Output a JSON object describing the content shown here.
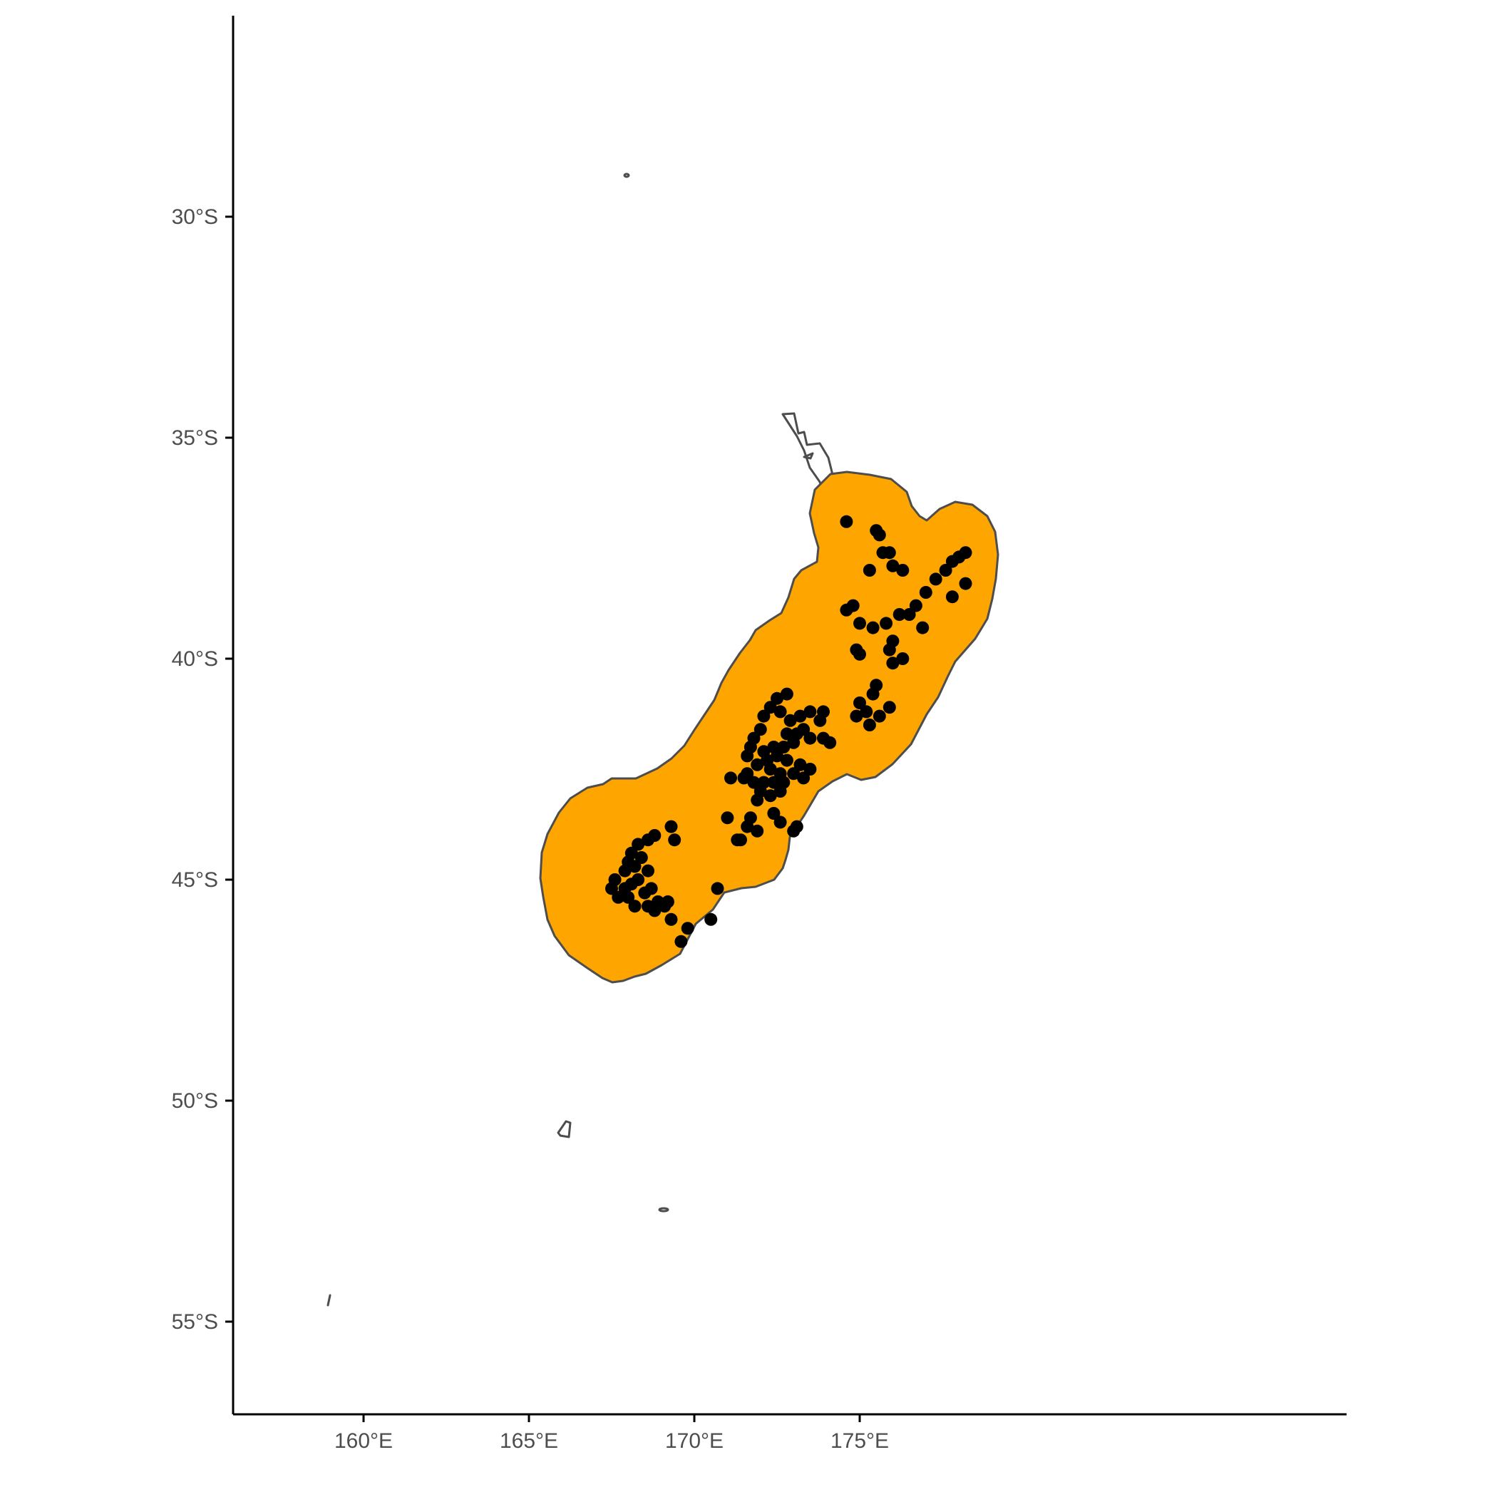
{
  "map": {
    "buffer_fill": "#FFA500",
    "outline_color": "#4d4d4d",
    "point_color": "#000000",
    "x_axis": {
      "ticks": [
        {
          "lon": 160,
          "label": "160°E"
        },
        {
          "lon": 165,
          "label": "165°E"
        },
        {
          "lon": 170,
          "label": "170°E"
        },
        {
          "lon": 175,
          "label": "175°E"
        }
      ]
    },
    "y_axis": {
      "ticks": [
        {
          "lat": -30,
          "label": "30°S"
        },
        {
          "lat": -35,
          "label": "35°S"
        },
        {
          "lat": -40,
          "label": "40°S"
        },
        {
          "lat": -45,
          "label": "45°S"
        },
        {
          "lat": -50,
          "label": "50°S"
        },
        {
          "lat": -55,
          "label": "55°S"
        }
      ]
    },
    "occurrences": [
      [
        174.6,
        -36.9
      ],
      [
        175.5,
        -37.1
      ],
      [
        175.6,
        -37.2
      ],
      [
        175.7,
        -37.6
      ],
      [
        175.9,
        -37.6
      ],
      [
        175.3,
        -38.0
      ],
      [
        176.0,
        -37.9
      ],
      [
        176.3,
        -38.0
      ],
      [
        177.8,
        -37.8
      ],
      [
        178.0,
        -37.7
      ],
      [
        178.2,
        -37.6
      ],
      [
        177.6,
        -38.0
      ],
      [
        177.3,
        -38.2
      ],
      [
        177.0,
        -38.5
      ],
      [
        176.7,
        -38.8
      ],
      [
        176.5,
        -39.0
      ],
      [
        178.2,
        -38.3
      ],
      [
        177.8,
        -38.6
      ],
      [
        176.9,
        -39.3
      ],
      [
        176.2,
        -39.0
      ],
      [
        175.8,
        -39.2
      ],
      [
        175.4,
        -39.3
      ],
      [
        175.0,
        -39.2
      ],
      [
        174.6,
        -38.9
      ],
      [
        174.8,
        -38.8
      ],
      [
        174.9,
        -39.8
      ],
      [
        175.0,
        -39.9
      ],
      [
        176.0,
        -39.6
      ],
      [
        176.0,
        -40.1
      ],
      [
        176.3,
        -40.0
      ],
      [
        175.9,
        -39.8
      ],
      [
        175.5,
        -40.6
      ],
      [
        175.4,
        -40.8
      ],
      [
        175.0,
        -41.0
      ],
      [
        175.2,
        -41.2
      ],
      [
        174.9,
        -41.3
      ],
      [
        175.3,
        -41.5
      ],
      [
        175.6,
        -41.3
      ],
      [
        175.9,
        -41.1
      ],
      [
        172.8,
        -40.8
      ],
      [
        172.5,
        -40.9
      ],
      [
        172.3,
        -41.1
      ],
      [
        172.1,
        -41.3
      ],
      [
        172.6,
        -41.2
      ],
      [
        172.9,
        -41.4
      ],
      [
        173.2,
        -41.3
      ],
      [
        173.5,
        -41.2
      ],
      [
        173.9,
        -41.2
      ],
      [
        173.8,
        -41.4
      ],
      [
        173.3,
        -41.6
      ],
      [
        173.1,
        -41.7
      ],
      [
        172.8,
        -41.7
      ],
      [
        172.0,
        -41.6
      ],
      [
        171.8,
        -41.8
      ],
      [
        171.7,
        -42.0
      ],
      [
        172.4,
        -42.0
      ],
      [
        172.7,
        -42.0
      ],
      [
        173.0,
        -41.9
      ],
      [
        173.5,
        -41.8
      ],
      [
        173.9,
        -41.8
      ],
      [
        174.1,
        -41.9
      ],
      [
        172.1,
        -42.1
      ],
      [
        171.6,
        -42.2
      ],
      [
        171.9,
        -42.4
      ],
      [
        172.2,
        -42.3
      ],
      [
        172.5,
        -42.2
      ],
      [
        172.8,
        -42.3
      ],
      [
        173.2,
        -42.4
      ],
      [
        173.5,
        -42.5
      ],
      [
        173.3,
        -42.7
      ],
      [
        173.0,
        -42.6
      ],
      [
        172.6,
        -42.6
      ],
      [
        172.3,
        -42.5
      ],
      [
        171.6,
        -42.6
      ],
      [
        171.8,
        -42.8
      ],
      [
        172.1,
        -42.8
      ],
      [
        172.4,
        -42.8
      ],
      [
        172.7,
        -42.8
      ],
      [
        171.5,
        -42.7
      ],
      [
        171.1,
        -42.7
      ],
      [
        172.0,
        -43.0
      ],
      [
        172.3,
        -43.1
      ],
      [
        172.6,
        -43.0
      ],
      [
        171.9,
        -43.2
      ],
      [
        172.4,
        -43.5
      ],
      [
        172.6,
        -43.7
      ],
      [
        173.1,
        -43.8
      ],
      [
        173.0,
        -43.9
      ],
      [
        171.0,
        -43.6
      ],
      [
        171.7,
        -43.6
      ],
      [
        171.6,
        -43.8
      ],
      [
        171.9,
        -43.9
      ],
      [
        171.3,
        -44.1
      ],
      [
        171.4,
        -44.1
      ],
      [
        170.7,
        -45.2
      ],
      [
        169.3,
        -43.8
      ],
      [
        169.4,
        -44.1
      ],
      [
        168.3,
        -44.2
      ],
      [
        168.1,
        -44.4
      ],
      [
        168.0,
        -44.6
      ],
      [
        167.9,
        -44.8
      ],
      [
        168.2,
        -44.7
      ],
      [
        168.4,
        -44.5
      ],
      [
        168.8,
        -44.0
      ],
      [
        168.6,
        -44.1
      ],
      [
        167.6,
        -45.0
      ],
      [
        167.5,
        -45.2
      ],
      [
        167.7,
        -45.4
      ],
      [
        167.9,
        -45.2
      ],
      [
        168.0,
        -45.4
      ],
      [
        168.2,
        -45.6
      ],
      [
        168.5,
        -45.3
      ],
      [
        168.7,
        -45.2
      ],
      [
        168.9,
        -45.5
      ],
      [
        168.6,
        -45.6
      ],
      [
        168.8,
        -45.7
      ],
      [
        169.1,
        -45.6
      ],
      [
        169.2,
        -45.5
      ],
      [
        169.3,
        -45.9
      ],
      [
        169.8,
        -46.1
      ],
      [
        170.5,
        -45.9
      ],
      [
        169.6,
        -46.4
      ],
      [
        168.3,
        -45.0
      ],
      [
        168.6,
        -44.8
      ],
      [
        168.1,
        -45.1
      ]
    ]
  }
}
